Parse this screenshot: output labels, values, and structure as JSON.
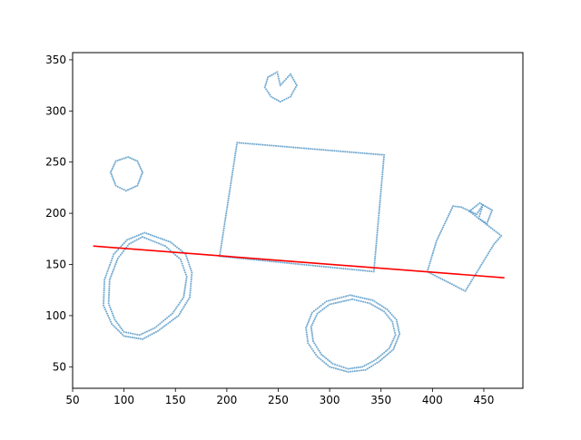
{
  "chart_data": {
    "type": "scatter",
    "title": "",
    "xlabel": "",
    "ylabel": "",
    "xlim": [
      50,
      488
    ],
    "ylim": [
      29,
      357
    ],
    "xticks": [
      50,
      100,
      150,
      200,
      250,
      300,
      350,
      400,
      450
    ],
    "yticks": [
      50,
      100,
      150,
      200,
      250,
      300,
      350
    ],
    "grid": false,
    "colors": {
      "points": "#5b9bc8",
      "fit_line": "#ff0000",
      "axes": "#000000"
    },
    "series": [
      {
        "kind": "polyline-points",
        "closed": true,
        "points": [
          [
            252,
            325
          ],
          [
            249,
            338
          ],
          [
            240,
            333
          ],
          [
            237,
            323
          ],
          [
            243,
            314
          ],
          [
            252,
            309
          ],
          [
            262,
            314
          ],
          [
            268,
            325
          ],
          [
            262,
            336
          ]
        ]
      },
      {
        "kind": "polyline-points",
        "closed": true,
        "points": [
          [
            104,
            255
          ],
          [
            113,
            251
          ],
          [
            118,
            240
          ],
          [
            113,
            227
          ],
          [
            102,
            222
          ],
          [
            92,
            227
          ],
          [
            87,
            240
          ],
          [
            92,
            251
          ]
        ]
      },
      {
        "kind": "polyline-points",
        "closed": true,
        "points": [
          [
            210,
            269
          ],
          [
            353,
            257
          ],
          [
            343,
            143
          ],
          [
            193,
            158
          ]
        ]
      },
      {
        "kind": "polyline-points",
        "closed": true,
        "points": [
          [
            120,
            181
          ],
          [
            145,
            172
          ],
          [
            160,
            160
          ],
          [
            166,
            142
          ],
          [
            164,
            118
          ],
          [
            153,
            100
          ],
          [
            133,
            85
          ],
          [
            118,
            77
          ],
          [
            100,
            80
          ],
          [
            88,
            92
          ],
          [
            80,
            110
          ],
          [
            81,
            135
          ],
          [
            90,
            160
          ],
          [
            103,
            174
          ]
        ]
      },
      {
        "kind": "polyline-points",
        "closed": true,
        "points": [
          [
            118,
            177
          ],
          [
            140,
            168
          ],
          [
            155,
            155
          ],
          [
            161,
            138
          ],
          [
            158,
            118
          ],
          [
            147,
            102
          ],
          [
            130,
            88
          ],
          [
            115,
            81
          ],
          [
            100,
            84
          ],
          [
            91,
            96
          ],
          [
            85,
            112
          ],
          [
            86,
            135
          ],
          [
            94,
            156
          ],
          [
            105,
            170
          ]
        ]
      },
      {
        "kind": "polyline-points",
        "closed": true,
        "points": [
          [
            320,
            120
          ],
          [
            342,
            115
          ],
          [
            356,
            106
          ],
          [
            365,
            96
          ],
          [
            368,
            82
          ],
          [
            362,
            67
          ],
          [
            348,
            55
          ],
          [
            335,
            47
          ],
          [
            318,
            45
          ],
          [
            300,
            50
          ],
          [
            288,
            60
          ],
          [
            279,
            73
          ],
          [
            277,
            88
          ],
          [
            283,
            103
          ],
          [
            297,
            114
          ]
        ]
      },
      {
        "kind": "polyline-points",
        "closed": true,
        "points": [
          [
            322,
            116
          ],
          [
            339,
            112
          ],
          [
            353,
            104
          ],
          [
            361,
            94
          ],
          [
            364,
            81
          ],
          [
            358,
            68
          ],
          [
            345,
            57
          ],
          [
            332,
            50
          ],
          [
            318,
            48
          ],
          [
            303,
            53
          ],
          [
            292,
            62
          ],
          [
            284,
            75
          ],
          [
            282,
            89
          ],
          [
            288,
            102
          ],
          [
            300,
            111
          ]
        ]
      },
      {
        "kind": "polyline-points",
        "closed": true,
        "points": [
          [
            420,
            207
          ],
          [
            428,
            206
          ],
          [
            443,
            199
          ],
          [
            449,
            208
          ],
          [
            445,
            195
          ],
          [
            467,
            178
          ],
          [
            460,
            170
          ],
          [
            432,
            124
          ],
          [
            395,
            143
          ],
          [
            404,
            173
          ]
        ]
      },
      {
        "kind": "polyline-points",
        "closed": true,
        "points": [
          [
            436,
            202
          ],
          [
            446,
            210
          ],
          [
            458,
            203
          ],
          [
            453,
            190
          ],
          [
            445,
            195
          ],
          [
            436,
            202
          ]
        ]
      }
    ],
    "fit_line": {
      "x": [
        70,
        470
      ],
      "y": [
        168,
        137
      ]
    }
  }
}
